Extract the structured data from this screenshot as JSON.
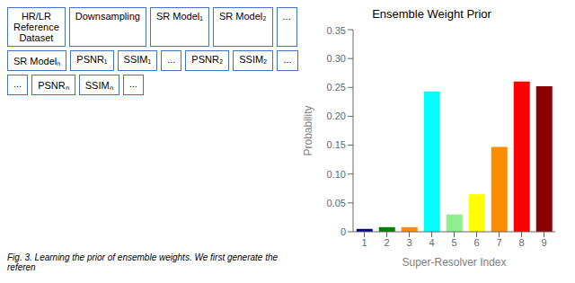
{
  "chart_data": {
    "type": "bar",
    "title": "Ensemble Weight Prior",
    "xlabel": "Super-Resolver Index",
    "ylabel": "Probability",
    "categories": [
      "1",
      "2",
      "3",
      "4",
      "5",
      "6",
      "7",
      "8",
      "9"
    ],
    "values": [
      0.005,
      0.008,
      0.008,
      0.243,
      0.03,
      0.065,
      0.147,
      0.26,
      0.252
    ],
    "colors": [
      "#00008B",
      "#008000",
      "#FF8C00",
      "#00FFFF",
      "#90EE90",
      "#FFFF00",
      "#FF8C00",
      "#FF0000",
      "#8B0000"
    ],
    "ylim": [
      0,
      0.35
    ],
    "yticks": [
      0,
      0.05,
      {
        "value": 0.1,
        "label": "0.10"
      },
      0.15,
      {
        "value": 0.2,
        "label": "0.20"
      },
      0.25,
      {
        "value": 0.3,
        "label": "0.30"
      },
      0.35
    ],
    "grid": false,
    "annotations": [
      "HR/LR\nReference\nDataset",
      "Downsampling",
      "SR Model₁",
      "SR Model₂",
      "...",
      "SR Modelₙ",
      "PSNR₁",
      "SSIM₁",
      "...",
      "PSNR₂",
      "SSIM₂",
      "...",
      "...",
      "PSNRₙ",
      "SSIMₙ",
      "...",
      "Fig. 3.  Learning the prior of ensemble weights. We first generate the referen"
    ]
  }
}
